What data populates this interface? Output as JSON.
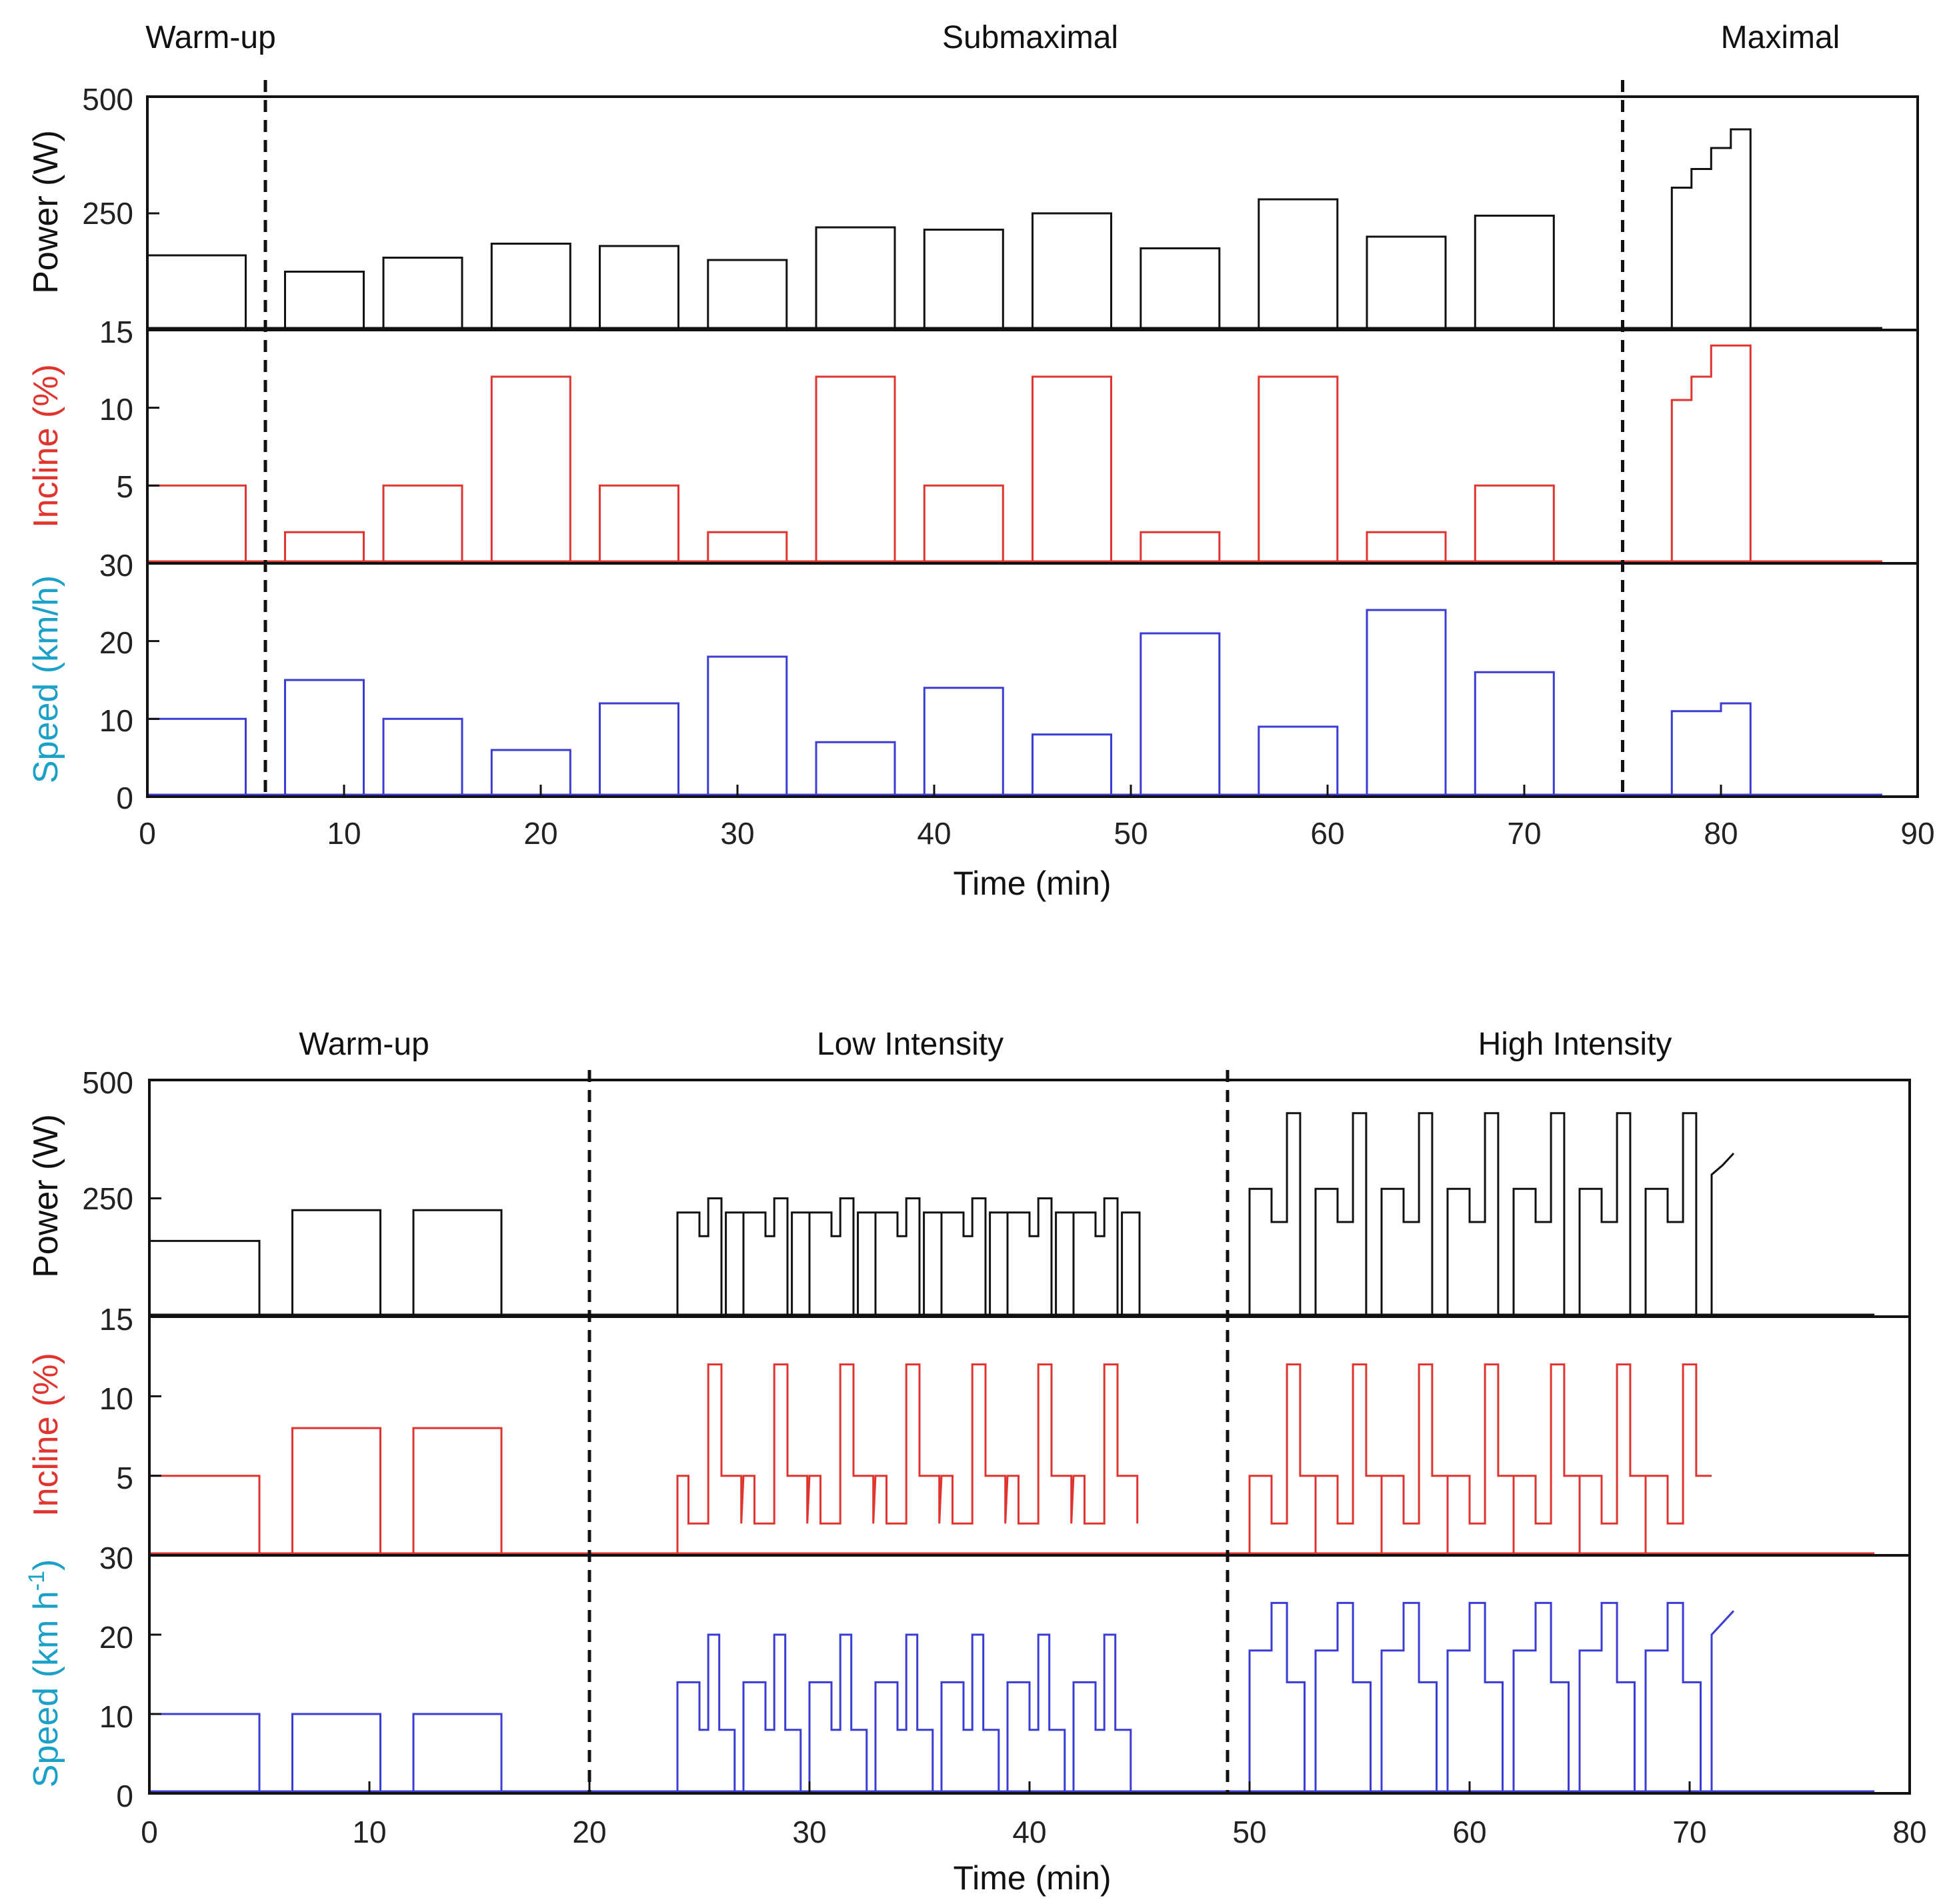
{
  "chart_data": [
    {
      "type": "line",
      "phases": [
        "Warm-up",
        "Submaximal",
        "Maximal"
      ],
      "phase_boundaries_min": [
        6,
        75
      ],
      "xlabel": "Time (min)",
      "xlim": [
        0,
        90
      ],
      "xticks": [
        "0",
        "10",
        "20",
        "30",
        "40",
        "50",
        "60",
        "70",
        "80",
        "90"
      ],
      "panels": [
        {
          "key": "power",
          "ylabel": "Power (W)",
          "ylim": [
            0,
            500
          ],
          "yticks": [
            "500",
            "250"
          ],
          "color": "#111111",
          "blocks": [
            [
              0,
              5,
              160
            ],
            [
              7,
              11,
              125
            ],
            [
              12,
              16,
              155
            ],
            [
              17.5,
              21.5,
              185
            ],
            [
              23,
              27,
              180
            ],
            [
              28.5,
              32.5,
              150
            ],
            [
              34,
              38,
              220
            ],
            [
              39.5,
              43.5,
              215
            ],
            [
              45,
              49,
              250
            ],
            [
              50.5,
              54.5,
              175
            ],
            [
              56.5,
              60.5,
              280
            ],
            [
              62,
              66,
              200
            ],
            [
              67.5,
              71.5,
              245
            ]
          ],
          "ramp": [
            [
              77.5,
              0
            ],
            [
              77.5,
              305
            ],
            [
              78.5,
              305
            ],
            [
              78.5,
              345
            ],
            [
              79.5,
              345
            ],
            [
              79.5,
              390
            ],
            [
              80.5,
              390
            ],
            [
              80.5,
              430
            ],
            [
              81.5,
              430
            ],
            [
              81.5,
              0
            ]
          ]
        },
        {
          "key": "incline",
          "ylabel": "Incline (%)",
          "ylim": [
            0,
            15
          ],
          "yticks": [
            "15",
            "10",
            "5"
          ],
          "color": "#e0342f",
          "blocks": [
            [
              0,
              5,
              5
            ],
            [
              7,
              11,
              2
            ],
            [
              12,
              16,
              5
            ],
            [
              17.5,
              21.5,
              12
            ],
            [
              23,
              27,
              5
            ],
            [
              28.5,
              32.5,
              2
            ],
            [
              34,
              38,
              12
            ],
            [
              39.5,
              43.5,
              5
            ],
            [
              45,
              49,
              12
            ],
            [
              50.5,
              54.5,
              2
            ],
            [
              56.5,
              60.5,
              12
            ],
            [
              62,
              66,
              2
            ],
            [
              67.5,
              71.5,
              5
            ]
          ],
          "ramp": [
            [
              77.5,
              0
            ],
            [
              77.5,
              10.5
            ],
            [
              78.5,
              10.5
            ],
            [
              78.5,
              12
            ],
            [
              79.5,
              12
            ],
            [
              79.5,
              14
            ],
            [
              81.5,
              14
            ],
            [
              81.5,
              0
            ],
            [
              88,
              0
            ]
          ]
        },
        {
          "key": "speed",
          "ylabel": "Speed (km/h)",
          "ylim": [
            0,
            30
          ],
          "yticks": [
            "30",
            "20",
            "10",
            "0"
          ],
          "color": "#3b3bd6",
          "blocks": [
            [
              0,
              5,
              10
            ],
            [
              7,
              11,
              15
            ],
            [
              12,
              16,
              10
            ],
            [
              17.5,
              21.5,
              6
            ],
            [
              23,
              27,
              12
            ],
            [
              28.5,
              32.5,
              18
            ],
            [
              34,
              38,
              7
            ],
            [
              39.5,
              43.5,
              14
            ],
            [
              45,
              49,
              8
            ],
            [
              50.5,
              54.5,
              21
            ],
            [
              56.5,
              60.5,
              9
            ],
            [
              62,
              66,
              24
            ],
            [
              67.5,
              71.5,
              16
            ]
          ],
          "ramp": [
            [
              77.5,
              0
            ],
            [
              77.5,
              11
            ],
            [
              80,
              11
            ],
            [
              80,
              12
            ],
            [
              81.5,
              12
            ],
            [
              81.5,
              0
            ],
            [
              88,
              0
            ]
          ]
        }
      ]
    },
    {
      "type": "line",
      "phases": [
        "Warm-up",
        "Low Intensity",
        "High Intensity"
      ],
      "phase_boundaries_min": [
        20,
        49
      ],
      "xlabel": "Time (min)",
      "xlim": [
        0,
        80
      ],
      "xticks": [
        "0",
        "10",
        "20",
        "30",
        "40",
        "50",
        "60",
        "70",
        "80"
      ],
      "warmup_blocks": [
        [
          0,
          5,
          [
            160,
            5,
            10
          ]
        ],
        [
          6.5,
          10.5,
          [
            225,
            8,
            10
          ]
        ],
        [
          12,
          16,
          [
            225,
            8,
            10
          ]
        ]
      ],
      "low_intensity": {
        "cycle_starts": [
          24,
          27,
          30,
          33,
          36,
          39,
          42
        ],
        "power_steps": [
          220,
          170,
          250
        ],
        "incline_steps": [
          5,
          2,
          12
        ],
        "speed_steps": [
          14,
          20,
          8
        ]
      },
      "high_intensity": {
        "cycle_starts": [
          50,
          53,
          56,
          59,
          62,
          65,
          68
        ],
        "power_steps": [
          270,
          200,
          430
        ],
        "incline_steps": [
          5,
          2,
          12
        ],
        "speed_steps": [
          18,
          24,
          14
        ]
      },
      "final_ramp": {
        "power": [
          300,
          345
        ],
        "speed": [
          20,
          23
        ]
      },
      "panels": [
        {
          "key": "power",
          "ylabel": "Power (W)",
          "ylim": [
            0,
            500
          ],
          "yticks": [
            "500",
            "250"
          ],
          "color": "#111111"
        },
        {
          "key": "incline",
          "ylabel": "Incline (%)",
          "ylim": [
            0,
            15
          ],
          "yticks": [
            "15",
            "10",
            "5"
          ],
          "color": "#e0342f"
        },
        {
          "key": "speed",
          "ylabel": "Speed (km h",
          "ylabel_sup": "-1",
          "ylabel_end": ")",
          "ylim": [
            0,
            30
          ],
          "yticks": [
            "30",
            "20",
            "10",
            "0"
          ],
          "color": "#3b3bd6"
        }
      ]
    }
  ]
}
